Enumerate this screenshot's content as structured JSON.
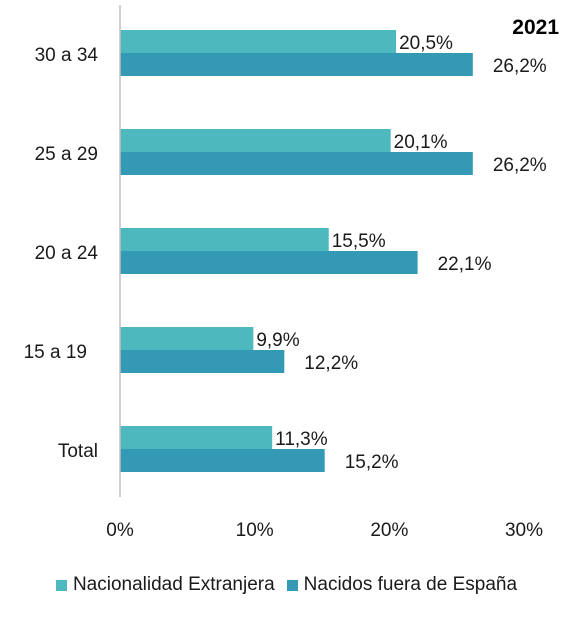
{
  "chart_data": {
    "type": "bar",
    "orientation": "horizontal",
    "title": "2021",
    "categories": [
      "30 a 34",
      "25 a 29",
      "20 a 24",
      "15 a 19",
      "Total"
    ],
    "series": [
      {
        "name": "Nacionalidad Extranjera",
        "color": "#4db8bd",
        "values": [
          20.5,
          20.1,
          15.5,
          9.9,
          11.3
        ],
        "labels": [
          "20,5%",
          "20,1%",
          "15,5%",
          "9,9%",
          "11,3%"
        ]
      },
      {
        "name": "Nacidos fuera de España",
        "color": "#3399b5",
        "values": [
          26.2,
          26.2,
          22.1,
          12.2,
          15.2
        ],
        "labels": [
          "26,2%",
          "26,2%",
          "22,1%",
          "12,2%",
          "15,2%"
        ]
      }
    ],
    "xlim": [
      0,
      30
    ],
    "xticks": [
      "0%",
      "10%",
      "20%",
      "30%"
    ],
    "grid": false,
    "legend_position": "bottom"
  }
}
